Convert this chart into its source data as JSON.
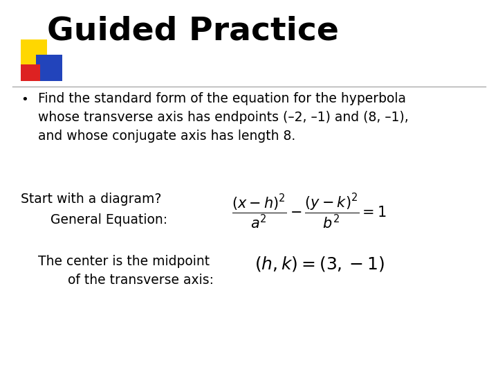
{
  "background_color": "#ffffff",
  "title": "Guided Practice",
  "title_fontsize": 34,
  "body_text_1": "Find the standard form of the equation for the hyperbola\nwhose transverse axis has endpoints (–2, –1) and (8, –1),\nand whose conjugate axis has length 8.",
  "body_text_1_fontsize": 13.5,
  "body_text_2a": "Start with a diagram?",
  "body_text_2b": "   General Equation:",
  "body_text_2_fontsize": 13.5,
  "body_text_3a": "The center is the midpoint",
  "body_text_3b": "   of the transverse axis:",
  "body_text_3_fontsize": 13.5,
  "eq1_fontsize": 15,
  "eq2_fontsize": 18,
  "divider_color": "#aaaaaa",
  "yellow_color": "#FFD700",
  "blue_color": "#2244BB",
  "red_color": "#DD2222"
}
